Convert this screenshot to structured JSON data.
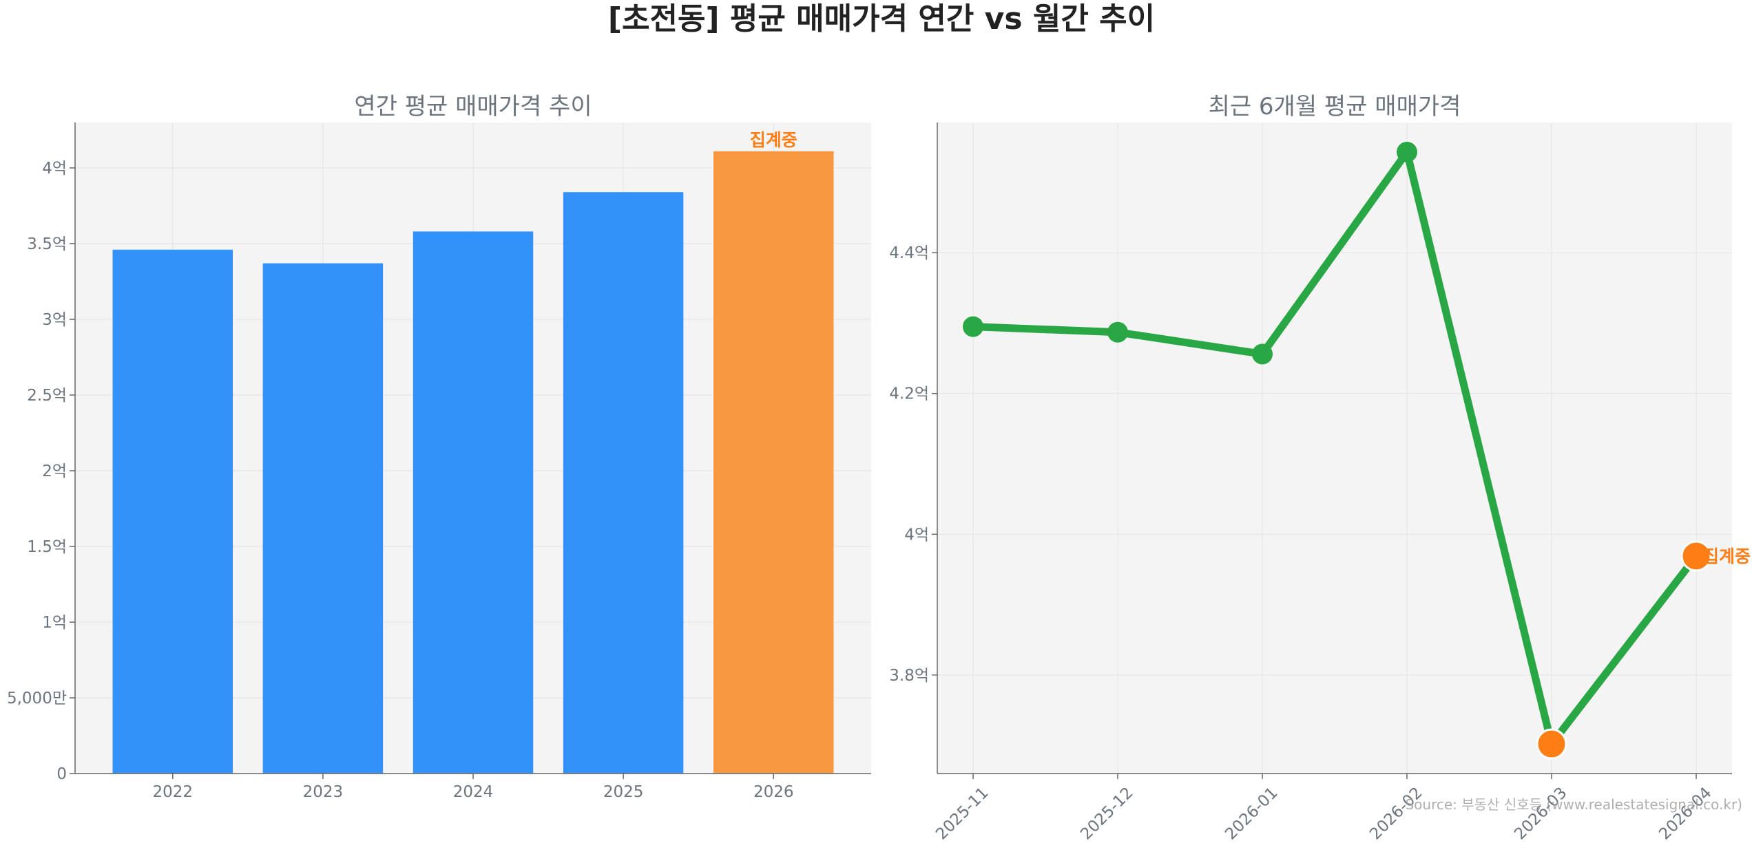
{
  "suptitle": "[초전동] 평균 매매가격 연간 vs 월간 추이",
  "source": "Source: 부동산 신호등 (www.realestatesignal.co.kr)",
  "colors": {
    "bar_blue": "#3392fa",
    "bar_orange": "#f89841",
    "line_green": "#29a745",
    "marker_orange": "#fd7e14",
    "annotation": "#fd7e14",
    "axes_bg": "#f4f4f4",
    "title_gray": "#6c757d"
  },
  "chart_data": [
    {
      "type": "bar",
      "title": "연간 평균 매매가격 추이",
      "categories": [
        "2022",
        "2023",
        "2024",
        "2025",
        "2026"
      ],
      "values": [
        3.46,
        3.37,
        3.58,
        3.84,
        4.11
      ],
      "value_unit": "억",
      "highlight_category": "2026",
      "annotation": {
        "category": "2026",
        "text": "집계중"
      },
      "ylim": [
        0,
        4.3
      ],
      "yticks": [
        0,
        0.5,
        1,
        1.5,
        2,
        2.5,
        3,
        3.5,
        4
      ],
      "ytick_labels": [
        "0",
        "5,000만",
        "1억",
        "1.5억",
        "2억",
        "2.5억",
        "3억",
        "3.5억",
        "4억"
      ],
      "grid": true
    },
    {
      "type": "line",
      "title": "최근 6개월 평균 매매가격",
      "categories": [
        "2025-11",
        "2025-12",
        "2026-01",
        "2026-02",
        "2026-03",
        "2026-04"
      ],
      "values": [
        4.295,
        4.287,
        4.256,
        4.543,
        3.702,
        3.969
      ],
      "value_unit": "억",
      "highlight_categories": [
        "2026-03",
        "2026-04"
      ],
      "annotation": {
        "category": "2026-04",
        "text": "집계중"
      },
      "ylim": [
        3.66,
        4.585
      ],
      "yticks": [
        3.8,
        4.0,
        4.2,
        4.4
      ],
      "ytick_labels": [
        "3.8억",
        "4억",
        "4.2억",
        "4.4억"
      ],
      "grid": true
    }
  ]
}
